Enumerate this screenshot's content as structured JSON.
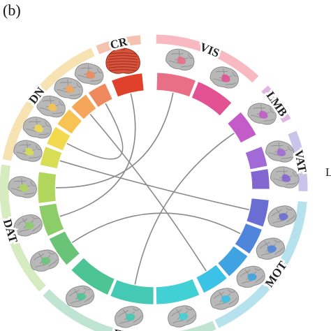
{
  "panel_label": "(b)",
  "networks": [
    {
      "id": "cr",
      "label": "CR",
      "outer_color": "#f6c2b0",
      "nodes": [
        {
          "color": "#e0412a"
        }
      ]
    },
    {
      "id": "vis",
      "label": "VIS",
      "outer_color": "#f8b9c3",
      "nodes": [
        {
          "color": "#e96f86"
        },
        {
          "color": "#e25293"
        }
      ]
    },
    {
      "id": "lmb",
      "label": "LMB",
      "outer_color": "#e2b6e3",
      "nodes": [
        {
          "color": "#c35bc9"
        }
      ]
    },
    {
      "id": "vat",
      "label": "VAT",
      "outer_color": "#c9c4ea",
      "nodes": [
        {
          "color": "#a26ad6"
        },
        {
          "color": "#8466d1"
        }
      ]
    },
    {
      "id": "mot",
      "label": "MOT",
      "outer_color": "#b6e2ee",
      "nodes": [
        {
          "color": "#6a6ed2"
        },
        {
          "color": "#4f86dc"
        },
        {
          "color": "#3fa3e2"
        },
        {
          "color": "#3cc2e6"
        }
      ]
    },
    {
      "id": "fpn",
      "label": "FPN",
      "outer_color": "#bfe5d2",
      "nodes": [
        {
          "color": "#41d0d4"
        },
        {
          "color": "#43c9b4"
        },
        {
          "color": "#4cc494"
        }
      ]
    },
    {
      "id": "dat",
      "label": "DAT",
      "outer_color": "#d6ebc0",
      "nodes": [
        {
          "color": "#6ac478"
        },
        {
          "color": "#8ccd6a"
        },
        {
          "color": "#b0d65b"
        }
      ]
    },
    {
      "id": "dn",
      "label": "DN",
      "outer_color": "#f7e2b2",
      "nodes": [
        {
          "color": "#d8dd56"
        },
        {
          "color": "#f3d94d"
        },
        {
          "color": "#f7c352"
        },
        {
          "color": "#f5a65b"
        },
        {
          "color": "#ef8a5f"
        }
      ]
    }
  ],
  "cut_label": "L",
  "connections": [
    [
      0,
      14
    ],
    [
      1,
      15
    ],
    [
      3,
      11
    ],
    [
      7,
      13
    ],
    [
      9,
      19
    ],
    [
      17,
      20
    ],
    [
      6,
      16
    ]
  ],
  "brain_colors": {
    "cortex": "#b8b8b8",
    "cortex_dark": "#8f8f8f",
    "cerebellum": "#d9533b"
  }
}
